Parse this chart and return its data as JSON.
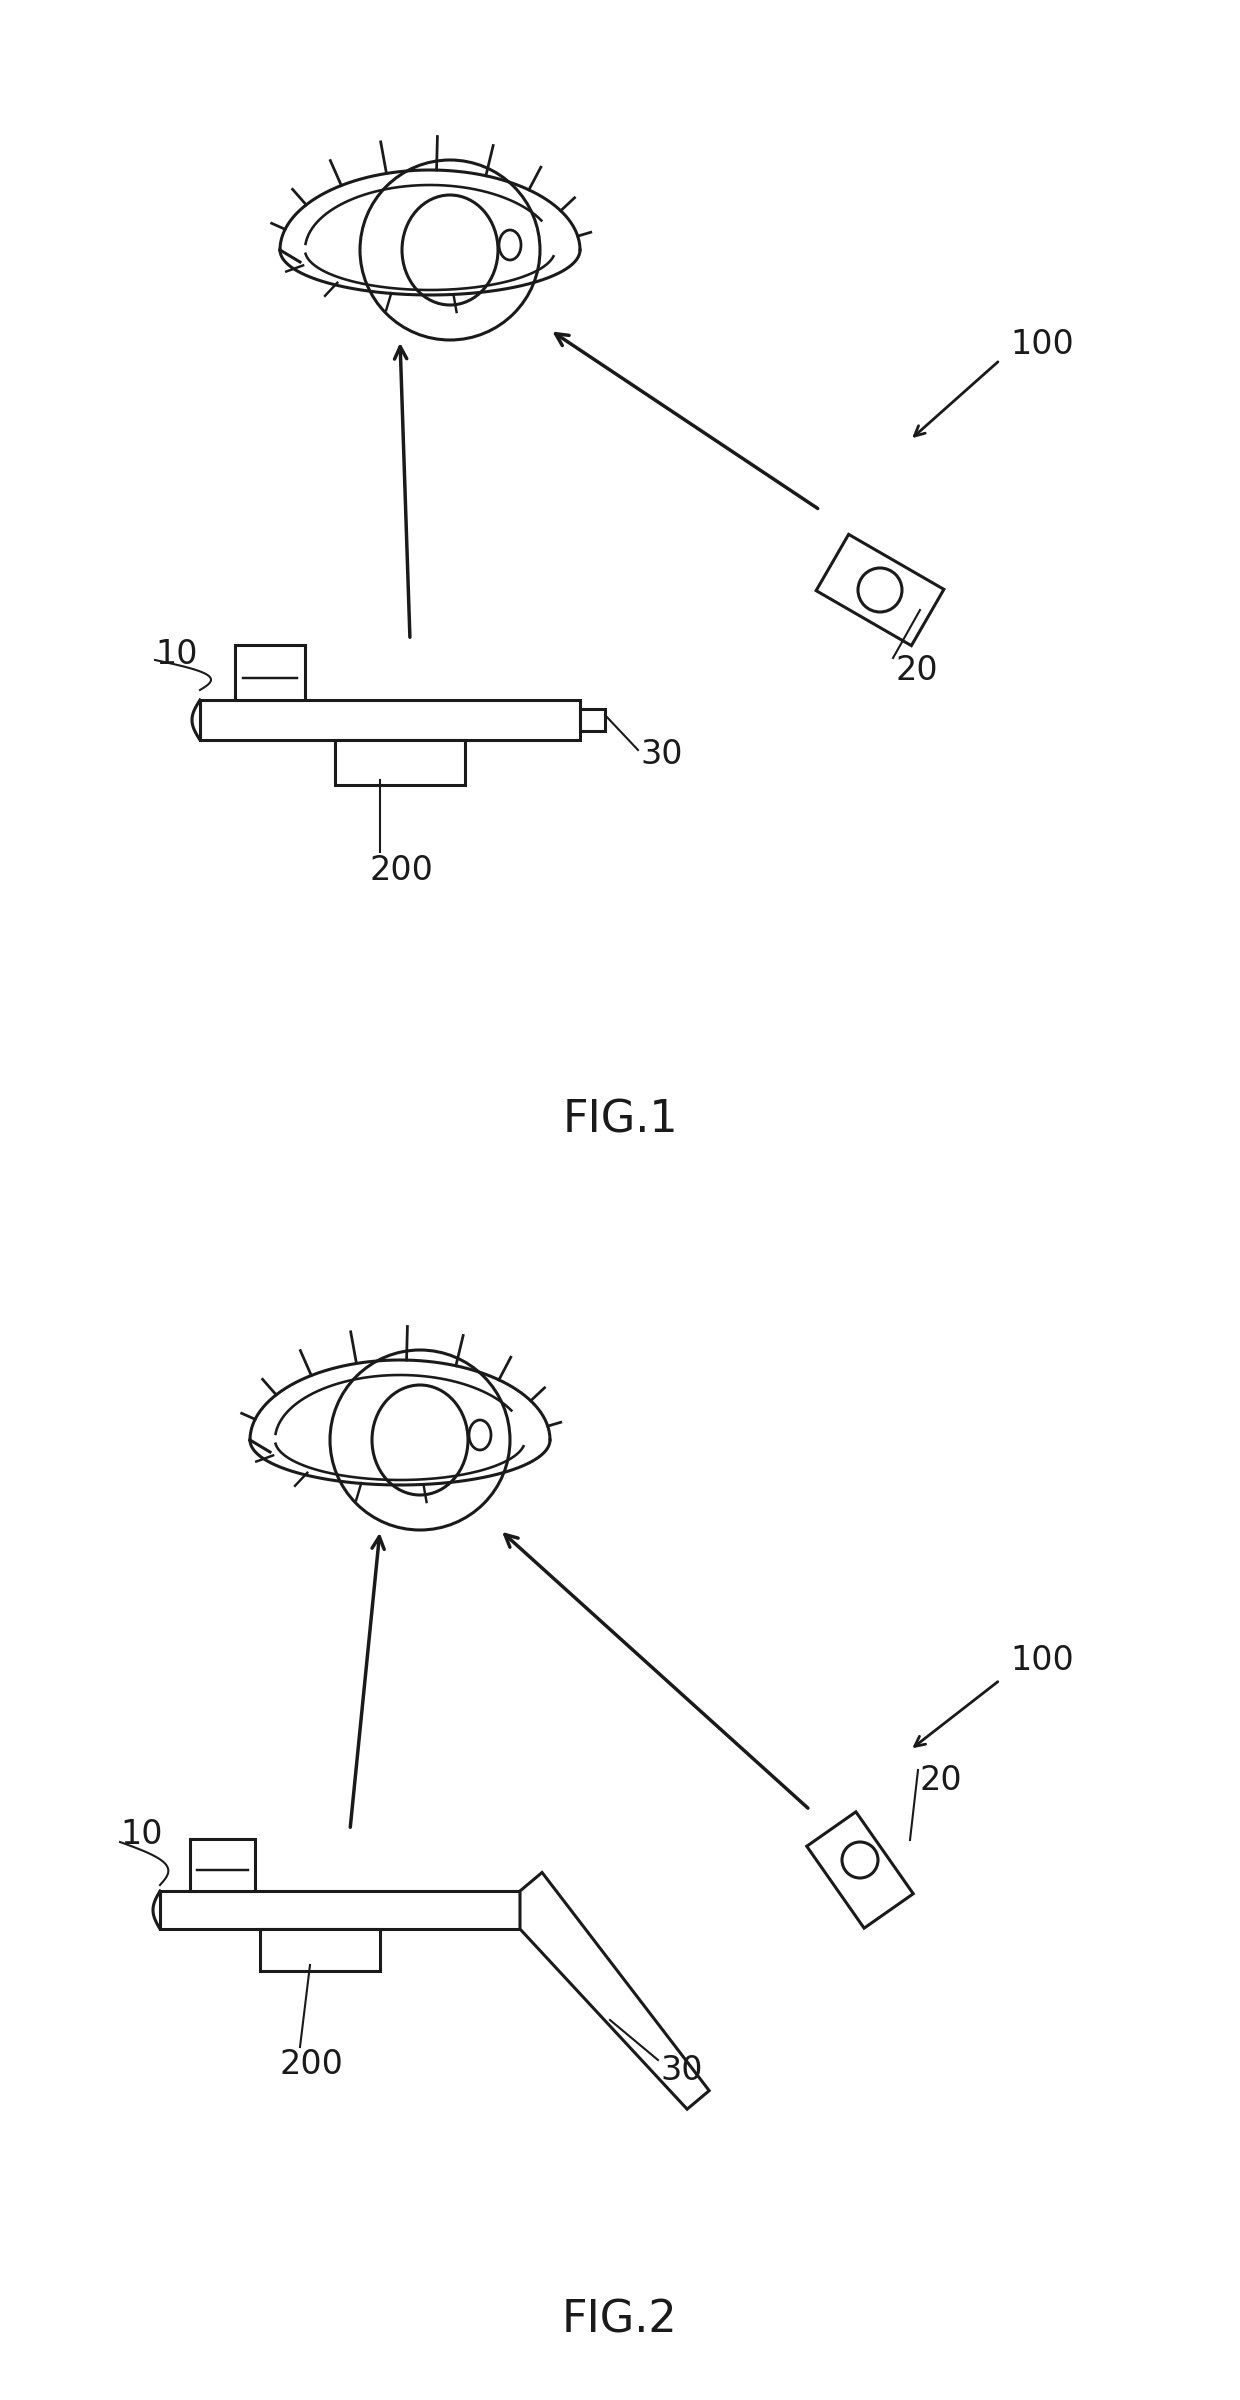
{
  "fig_label_1": "FIG.1",
  "fig_label_2": "FIG.2",
  "bg_color": "#ffffff",
  "line_color": "#1a1a1a",
  "fontsize_label": 32,
  "fontsize_ref": 24
}
